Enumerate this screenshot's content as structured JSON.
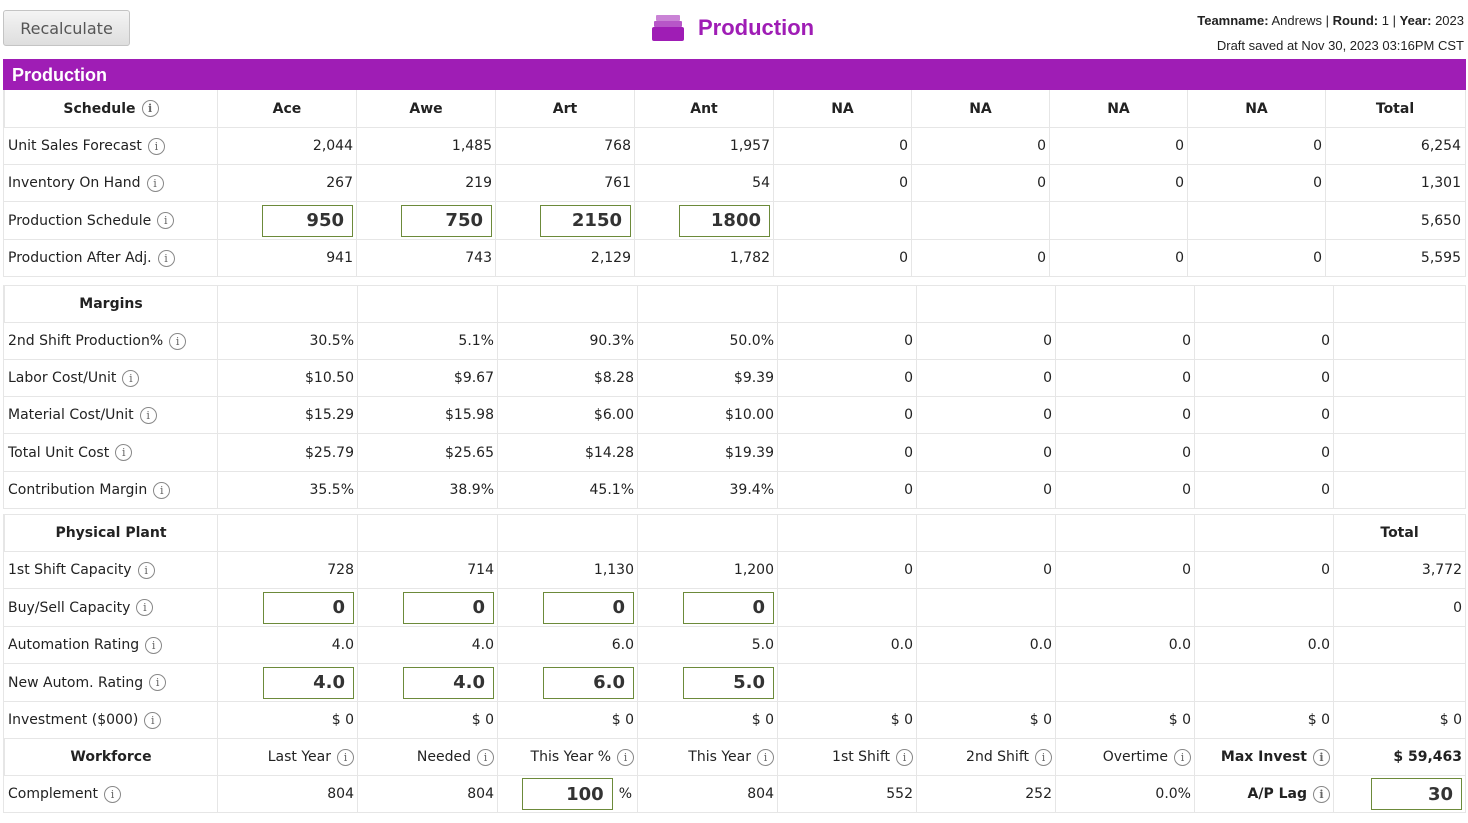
{
  "header": {
    "recalc_label": "Recalculate",
    "title": "Production",
    "team_label": "Teamname:",
    "team_value": "Andrews",
    "round_label": "Round:",
    "round_value": "1",
    "year_label": "Year:",
    "year_value": "2023",
    "draft_text": "Draft saved at Nov 30, 2023 03:16PM CST",
    "accent": "#9f1db5"
  },
  "band_title": "Production",
  "schedule": {
    "heading": "Schedule",
    "columns": [
      "Ace",
      "Awe",
      "Art",
      "Ant",
      "NA",
      "NA",
      "NA",
      "NA",
      "Total"
    ],
    "rows": [
      {
        "label": "Unit Sales Forecast",
        "values": [
          "2,044",
          "1,485",
          "768",
          "1,957",
          "0",
          "0",
          "0",
          "0",
          "6,254"
        ]
      },
      {
        "label": "Inventory On Hand",
        "values": [
          "267",
          "219",
          "761",
          "54",
          "0",
          "0",
          "0",
          "0",
          "1,301"
        ]
      },
      {
        "label": "Production Schedule",
        "inputs": [
          "950",
          "750",
          "2150",
          "1800"
        ],
        "values": [
          "",
          "",
          "",
          "",
          "5,650"
        ]
      },
      {
        "label": "Production After Adj.",
        "values": [
          "941",
          "743",
          "2,129",
          "1,782",
          "0",
          "0",
          "0",
          "0",
          "5,595"
        ]
      }
    ]
  },
  "margins": {
    "heading": "Margins",
    "rows": [
      {
        "label": "2nd Shift Production%",
        "values": [
          "30.5%",
          "5.1%",
          "90.3%",
          "50.0%",
          "0",
          "0",
          "0",
          "0",
          ""
        ]
      },
      {
        "label": "Labor Cost/Unit",
        "values": [
          "$10.50",
          "$9.67",
          "$8.28",
          "$9.39",
          "0",
          "0",
          "0",
          "0",
          ""
        ]
      },
      {
        "label": "Material Cost/Unit",
        "values": [
          "$15.29",
          "$15.98",
          "$6.00",
          "$10.00",
          "0",
          "0",
          "0",
          "0",
          ""
        ]
      },
      {
        "label": "Total Unit Cost",
        "values": [
          "$25.79",
          "$25.65",
          "$14.28",
          "$19.39",
          "0",
          "0",
          "0",
          "0",
          ""
        ]
      },
      {
        "label": "Contribution Margin",
        "values": [
          "35.5%",
          "38.9%",
          "45.1%",
          "39.4%",
          "0",
          "0",
          "0",
          "0",
          ""
        ]
      }
    ]
  },
  "plant": {
    "heading": "Physical Plant",
    "total_label": "Total",
    "rows": [
      {
        "label": "1st Shift Capacity",
        "values": [
          "728",
          "714",
          "1,130",
          "1,200",
          "0",
          "0",
          "0",
          "0",
          "3,772"
        ]
      },
      {
        "label": "Buy/Sell Capacity",
        "inputs": [
          "0",
          "0",
          "0",
          "0"
        ],
        "values": [
          "",
          "",
          "",
          "",
          "0"
        ]
      },
      {
        "label": "Automation Rating",
        "values": [
          "4.0",
          "4.0",
          "6.0",
          "5.0",
          "0.0",
          "0.0",
          "0.0",
          "0.0",
          ""
        ]
      },
      {
        "label": "New Autom. Rating",
        "inputs": [
          "4.0",
          "4.0",
          "6.0",
          "5.0"
        ],
        "values": [
          "",
          "",
          "",
          "",
          ""
        ]
      },
      {
        "label": "Investment ($000)",
        "values": [
          "$ 0",
          "$ 0",
          "$ 0",
          "$ 0",
          "$ 0",
          "$ 0",
          "$ 0",
          "$ 0",
          "$ 0"
        ]
      }
    ]
  },
  "workforce": {
    "heading": "Workforce",
    "columns": [
      "Last Year",
      "Needed",
      "This Year %",
      "This Year",
      "1st Shift",
      "2nd Shift",
      "Overtime"
    ],
    "max_invest_label": "Max Invest",
    "max_invest_value": "$ 59,463",
    "complement_label": "Complement",
    "last_year": "804",
    "needed": "804",
    "this_year_pct_input": "100",
    "pct_sign": "%",
    "this_year": "804",
    "first_shift": "552",
    "second_shift": "252",
    "overtime": "0.0%",
    "ap_lag_label": "A/P Lag",
    "ap_lag_input": "30"
  }
}
